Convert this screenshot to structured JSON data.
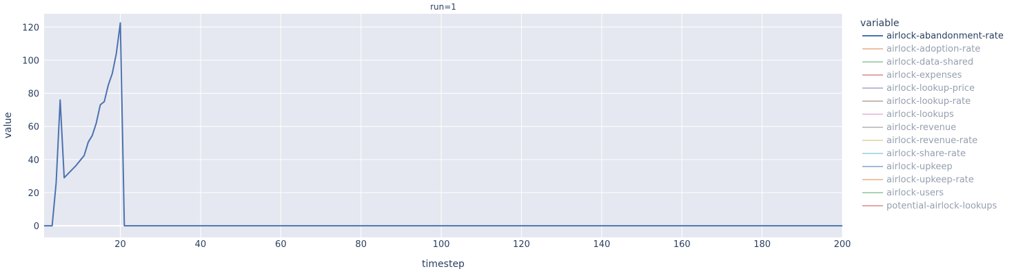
{
  "chart_data": {
    "type": "line",
    "facet_title": "run=1",
    "xlabel": "timestep",
    "ylabel": "value",
    "xlim": [
      1,
      200
    ],
    "ylim": [
      -7,
      128
    ],
    "x_ticks": [
      20,
      40,
      60,
      80,
      100,
      120,
      140,
      160,
      180,
      200
    ],
    "y_ticks": [
      0,
      20,
      40,
      60,
      80,
      100,
      120
    ],
    "grid": true,
    "legend": {
      "title": "variable",
      "placement": "right"
    },
    "series": [
      {
        "name": "airlock-abandonment-rate",
        "color": "#4c72b0",
        "visible": true,
        "x": [
          1,
          2,
          3,
          4,
          5,
          6,
          7,
          8,
          9,
          10,
          11,
          12,
          13,
          14,
          15,
          16,
          17,
          18,
          19,
          20,
          21,
          200
        ],
        "y": [
          0,
          0,
          0,
          26,
          76,
          29,
          31.5,
          34,
          36.5,
          39.5,
          42.5,
          50.5,
          54.5,
          62,
          73,
          75,
          85,
          92,
          104,
          122.5,
          0,
          0
        ]
      },
      {
        "name": "airlock-adoption-rate",
        "color": "#dd8452",
        "visible": false
      },
      {
        "name": "airlock-data-shared",
        "color": "#55a868",
        "visible": false
      },
      {
        "name": "airlock-expenses",
        "color": "#c44e52",
        "visible": false
      },
      {
        "name": "airlock-lookup-price",
        "color": "#8172b3",
        "visible": false
      },
      {
        "name": "airlock-lookup-rate",
        "color": "#937860",
        "visible": false
      },
      {
        "name": "airlock-lookups",
        "color": "#da8bc3",
        "visible": false
      },
      {
        "name": "airlock-revenue",
        "color": "#8c8c8c",
        "visible": false
      },
      {
        "name": "airlock-revenue-rate",
        "color": "#ccb974",
        "visible": false
      },
      {
        "name": "airlock-share-rate",
        "color": "#64b5cd",
        "visible": false
      },
      {
        "name": "airlock-upkeep",
        "color": "#4c72b0",
        "visible": false
      },
      {
        "name": "airlock-upkeep-rate",
        "color": "#dd8452",
        "visible": false
      },
      {
        "name": "airlock-users",
        "color": "#55a868",
        "visible": false
      },
      {
        "name": "potential-airlock-lookups",
        "color": "#c44e52",
        "visible": false
      }
    ]
  }
}
